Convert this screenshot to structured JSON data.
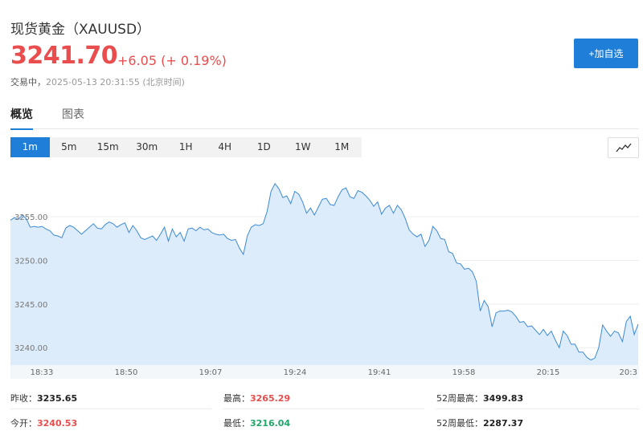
{
  "header": {
    "title": "现货黄金（XAUUSD）",
    "price": "3241.70",
    "change": "+6.05 (+ 0.19%)",
    "status_label": "交易中，",
    "timestamp": "2025-05-13 20:31:55 (北京时间)",
    "add_button": "+加自选"
  },
  "tabs": [
    {
      "label": "概览",
      "active": true
    },
    {
      "label": "图表",
      "active": false
    }
  ],
  "ranges": [
    {
      "label": "1m",
      "active": true
    },
    {
      "label": "5m"
    },
    {
      "label": "15m"
    },
    {
      "label": "30m"
    },
    {
      "label": "1H"
    },
    {
      "label": "4H"
    },
    {
      "label": "1D"
    },
    {
      "label": "1W"
    },
    {
      "label": "1M"
    }
  ],
  "chart_type_icon": "line-chart-icon",
  "chart_data": {
    "type": "area",
    "ylim": [
      3238.0,
      3260.8
    ],
    "yticks": [
      "3255.00",
      "3250.00",
      "3245.00",
      "3240.00"
    ],
    "ytick_values": [
      3255,
      3250,
      3245,
      3240
    ],
    "xticks": [
      "18:33",
      "18:50",
      "19:07",
      "19:24",
      "19:41",
      "19:58",
      "20:15",
      "20:3"
    ],
    "grid": true,
    "color": "#3d8ad8",
    "fill": "#dcecfb",
    "values": [
      3254.6,
      3254.9,
      3254.7,
      3255.2,
      3254.8,
      3253.8,
      3253.9,
      3253.8,
      3253.9,
      3253.6,
      3253.4,
      3252.9,
      3252.8,
      3252.6,
      3253.7,
      3254.0,
      3253.8,
      3253.4,
      3253.0,
      3253.4,
      3253.8,
      3254.2,
      3253.7,
      3253.6,
      3254.1,
      3254.4,
      3254.2,
      3253.8,
      3254.1,
      3254.3,
      3253.2,
      3254.0,
      3253.4,
      3252.6,
      3252.4,
      3252.6,
      3252.8,
      3252.3,
      3253.0,
      3253.8,
      3252.2,
      3253.6,
      3252.7,
      3253.2,
      3252.2,
      3253.6,
      3253.7,
      3253.4,
      3253.8,
      3253.5,
      3253.6,
      3253.2,
      3253.0,
      3252.9,
      3253.0,
      3252.5,
      3252.3,
      3252.4,
      3251.4,
      3250.7,
      3252.8,
      3253.8,
      3254.1,
      3254.0,
      3254.2,
      3255.6,
      3257.9,
      3258.8,
      3258.2,
      3257.2,
      3257.4,
      3256.5,
      3257.9,
      3257.6,
      3256.7,
      3255.4,
      3256.0,
      3255.2,
      3256.1,
      3257.0,
      3257.1,
      3256.4,
      3256.3,
      3257.3,
      3258.1,
      3258.3,
      3257.3,
      3257.1,
      3258.0,
      3257.8,
      3257.4,
      3256.9,
      3256.2,
      3256.7,
      3255.3,
      3256.0,
      3256.3,
      3255.4,
      3256.3,
      3255.8,
      3254.8,
      3253.5,
      3253.0,
      3252.7,
      3253.0,
      3251.6,
      3252.3,
      3253.9,
      3253.4,
      3252.5,
      3252.4,
      3251.0,
      3250.8,
      3249.7,
      3249.6,
      3249.0,
      3249.1,
      3248.7,
      3247.6,
      3244.2,
      3245.4,
      3244.7,
      3242.4,
      3244.0,
      3244.2,
      3244.2,
      3244.3,
      3244.1,
      3243.6,
      3242.9,
      3243.0,
      3242.4,
      3242.5,
      3242.0,
      3241.5,
      3242.1,
      3241.4,
      3241.9,
      3240.9,
      3240.0,
      3241.9,
      3241.4,
      3240.4,
      3240.4,
      3239.5,
      3239.5,
      3238.9,
      3238.6,
      3238.8,
      3240.0,
      3242.6,
      3241.9,
      3241.3,
      3241.9,
      3241.7,
      3240.7,
      3243.0,
      3243.6,
      3241.5,
      3242.7
    ]
  },
  "stats": [
    {
      "label": "昨收：",
      "value": "3235.65",
      "tone": "dark"
    },
    {
      "label": "最高：",
      "value": "3265.29",
      "tone": "red"
    },
    {
      "label": "52周最高：",
      "value": "3499.83",
      "tone": "dark"
    },
    {
      "label": "今开：",
      "value": "3240.53",
      "tone": "red"
    },
    {
      "label": "最低：",
      "value": "3216.04",
      "tone": "green"
    },
    {
      "label": "52周最低：",
      "value": "2287.37",
      "tone": "dark"
    }
  ]
}
